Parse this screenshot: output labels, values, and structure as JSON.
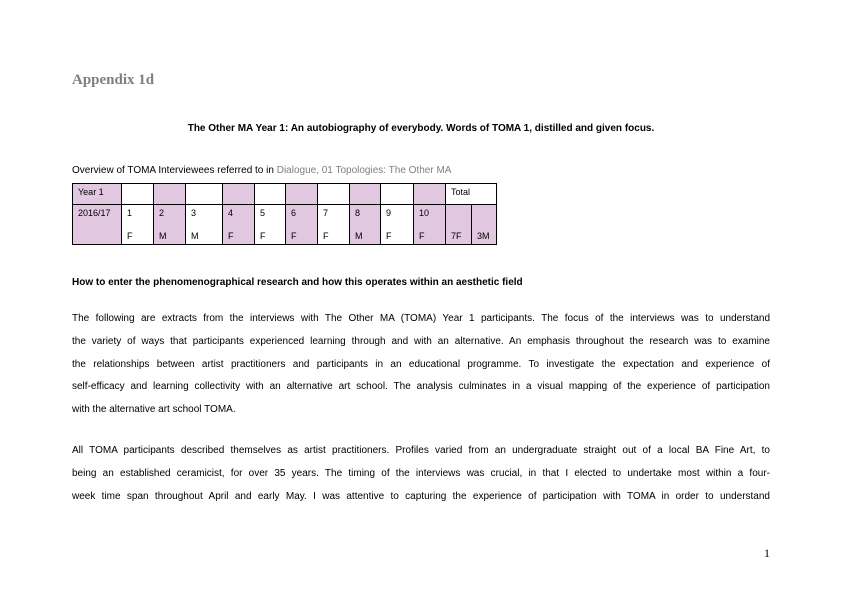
{
  "appendix_heading": "Appendix 1d",
  "title": "The Other MA Year 1: An autobiography of everybody. Words of TOMA 1, distilled and given focus.",
  "overview": {
    "text": "Overview of TOMA Interviewees referred to in ",
    "reference": "Dialogue, 01 Topologies: The Other MA"
  },
  "table": {
    "header_year": "Year 1",
    "header_total": "Total",
    "row_year": "2016/17",
    "interviewees": [
      {
        "number": "1",
        "gender": "F"
      },
      {
        "number": "2",
        "gender": "M"
      },
      {
        "number": "3",
        "gender": "M"
      },
      {
        "number": "4",
        "gender": "F"
      },
      {
        "number": "5",
        "gender": "F"
      },
      {
        "number": "6",
        "gender": "F"
      },
      {
        "number": "7",
        "gender": "F"
      },
      {
        "number": "8",
        "gender": "M"
      },
      {
        "number": "9",
        "gender": "F"
      },
      {
        "number": "10",
        "gender": "F"
      }
    ],
    "total_female": "7F",
    "total_male": "3M"
  },
  "section_heading": "How to enter the phenomenographical research and how this operates within an aesthetic field",
  "paragraph1_lines": [
    "The following are extracts from the interviews with The Other MA (TOMA) Year 1 participants. The focus of the interviews was to understand",
    "the variety of ways that participants experienced learning through and with an alternative. An emphasis throughout the research was to examine",
    "the relationships between artist practitioners and participants in an educational programme. To investigate the expectation and experience of",
    "self-efficacy and learning collectivity with an alternative art school. The analysis culminates in a visual mapping of the experience of participation",
    "with the alternative art school TOMA."
  ],
  "paragraph2_lines": [
    "All TOMA participants described themselves as artist practitioners. Profiles varied from an undergraduate straight out of a local BA Fine Art, to",
    "being an established ceramicist, for over 35 years. The timing of the interviews was crucial, in that I elected to undertake most within a four-",
    "week time span throughout April and early May. I was attentive to capturing the experience of participation with TOMA in order to understand"
  ],
  "page_number": "1",
  "colors": {
    "table_highlight": "#e1c7df",
    "heading_grey": "#7f7f7f"
  }
}
